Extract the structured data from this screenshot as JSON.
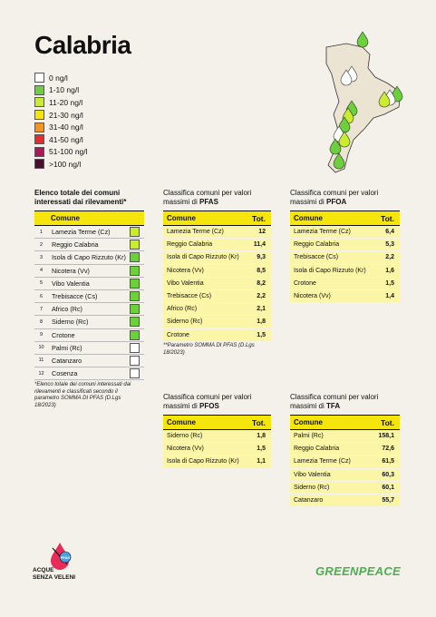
{
  "title": "Calabria",
  "legend": [
    {
      "label": "0 ng/l",
      "color": "#ffffff"
    },
    {
      "label": "1-10 ng/l",
      "color": "#6ccf3c"
    },
    {
      "label": "11-20 ng/l",
      "color": "#c9ec2f"
    },
    {
      "label": "21-30 ng/l",
      "color": "#f5e50a"
    },
    {
      "label": "31-40 ng/l",
      "color": "#f7941d"
    },
    {
      "label": "41-50 ng/l",
      "color": "#e82c2c"
    },
    {
      "label": "51-100 ng/l",
      "color": "#b0155a"
    },
    {
      "label": ">100 ng/l",
      "color": "#4a0f2e"
    }
  ],
  "list": {
    "title": "Elenco totale dei comuni interessati dai rilevamenti*",
    "header": "Comune",
    "rows": [
      {
        "idx": "1",
        "name": "Lamezia Terme (Cz)",
        "color": "#c9ec2f"
      },
      {
        "idx": "2",
        "name": "Reggio Calabria",
        "color": "#c9ec2f"
      },
      {
        "idx": "3",
        "name": "Isola di Capo Rizzuto (Kr)",
        "color": "#6ccf3c"
      },
      {
        "idx": "4",
        "name": "Nicotera (Vv)",
        "color": "#6ccf3c"
      },
      {
        "idx": "5",
        "name": "Vibo Valentia",
        "color": "#6ccf3c"
      },
      {
        "idx": "6",
        "name": "Trebisacce (Cs)",
        "color": "#6ccf3c"
      },
      {
        "idx": "7",
        "name": "Africo (Rc)",
        "color": "#6ccf3c"
      },
      {
        "idx": "8",
        "name": "Siderno (Rc)",
        "color": "#6ccf3c"
      },
      {
        "idx": "9",
        "name": "Crotone",
        "color": "#6ccf3c"
      },
      {
        "idx": "10",
        "name": "Palmi (Rc)",
        "color": "#ffffff"
      },
      {
        "idx": "11",
        "name": "Catanzaro",
        "color": "#ffffff"
      },
      {
        "idx": "12",
        "name": "Cosenza",
        "color": "#ffffff"
      }
    ],
    "note": "*Elenco totale dei comuni interessati dai rilevamenti e classificati secondo il parametro SOMMA DI PFAS (D.Lgs 18/2023)"
  },
  "pfas": {
    "title_pre": "Classifica comuni per valori massimi di ",
    "title_bold": "PFAS",
    "col_name": "Comune",
    "col_tot": "Tot.",
    "rows": [
      {
        "name": "Lamezia Terme (Cz)",
        "val": "12"
      },
      {
        "name": "Reggio Calabria",
        "val": "11,4"
      },
      {
        "name": "Isola di Capo Rizzuto (Kr)",
        "val": "9,3"
      },
      {
        "name": "Nicotera (Vv)",
        "val": "8,5"
      },
      {
        "name": "Vibo Valentia",
        "val": "8,2"
      },
      {
        "name": "Trebisacce (Cs)",
        "val": "2,2"
      },
      {
        "name": "Africo (Rc)",
        "val": "2,1"
      },
      {
        "name": "Siderno (Rc)",
        "val": "1,8"
      },
      {
        "name": "Crotone",
        "val": "1,5"
      }
    ],
    "note": "**Parametro SOMMA DI PFAS (D.Lgs 18/2023)"
  },
  "pfoa": {
    "title_pre": "Classifica comuni per valori massimi di ",
    "title_bold": "PFOA",
    "col_name": "Comune",
    "col_tot": "Tot.",
    "rows": [
      {
        "name": "Lamezia Terme (Cz)",
        "val": "6,4"
      },
      {
        "name": "Reggio Calabria",
        "val": "5,3"
      },
      {
        "name": "Trebisacce (Cs)",
        "val": "2,2"
      },
      {
        "name": "Isola di Capo Rizzuto (Kr)",
        "val": "1,6"
      },
      {
        "name": "Crotone",
        "val": "1,5"
      },
      {
        "name": "Nicotera (Vv)",
        "val": "1,4"
      }
    ]
  },
  "pfos": {
    "title_pre": "Classifica comuni per valori massimi di ",
    "title_bold": "PFOS",
    "col_name": "Comune",
    "col_tot": "Tot.",
    "rows": [
      {
        "name": "Siderno (Rc)",
        "val": "1,8"
      },
      {
        "name": "Nicotera (Vv)",
        "val": "1,5"
      },
      {
        "name": "Isola di Capo Rizzuto (Kr)",
        "val": "1,1"
      }
    ]
  },
  "tfa": {
    "title_pre": "Classifica comuni per valori massimi di ",
    "title_bold": "TFA",
    "col_name": "Comune",
    "col_tot": "Tot.",
    "rows": [
      {
        "name": "Palmi (Rc)",
        "val": "158,1"
      },
      {
        "name": "Reggio Calabria",
        "val": "72,6"
      },
      {
        "name": "Lamezia Terme (Cz)",
        "val": "61,5"
      },
      {
        "name": "Vibo Valentia",
        "val": "60,3"
      },
      {
        "name": "Siderno (Rc)",
        "val": "60,1"
      },
      {
        "name": "Catanzaro",
        "val": "55,7"
      }
    ]
  },
  "logos": {
    "acque_line1": "ACQUE",
    "acque_line2": "SENZA VELENI",
    "acque_badge": "PFAS",
    "greenpeace": "GREENPEACE"
  },
  "map_icons": "water-drop-markers"
}
